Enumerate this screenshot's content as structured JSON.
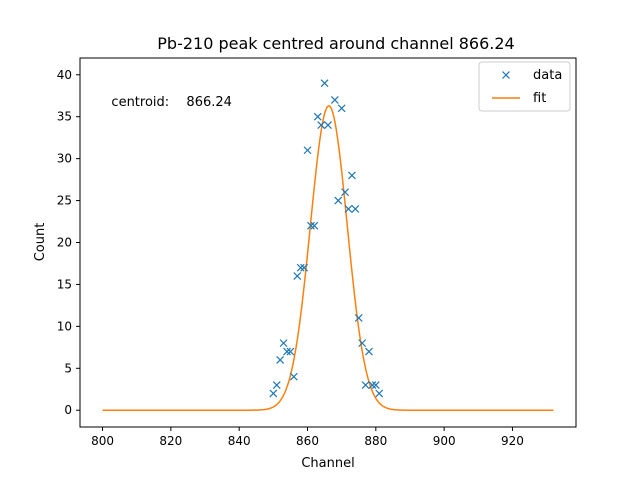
{
  "chart_data": {
    "type": "scatter",
    "title": "Pb-210 peak centred around channel 866.24",
    "xlabel": "Channel",
    "ylabel": "Count",
    "xlim": [
      793.4,
      938.6
    ],
    "ylim": [
      -2,
      42
    ],
    "xticks": [
      800,
      820,
      840,
      860,
      880,
      900,
      920
    ],
    "yticks": [
      0,
      5,
      10,
      15,
      20,
      25,
      30,
      35,
      40
    ],
    "grid": false,
    "legend_position": "top-right",
    "annotation": {
      "label": "centroid:",
      "value": "866.24",
      "anchor_x": 802.6,
      "anchor_y": 36.3
    },
    "series": [
      {
        "name": "data",
        "kind": "scatter",
        "marker": "x",
        "color": "#1f77b4",
        "points": [
          [
            850,
            2
          ],
          [
            851,
            3
          ],
          [
            852,
            6
          ],
          [
            853,
            8
          ],
          [
            854,
            7
          ],
          [
            855,
            7
          ],
          [
            856,
            4
          ],
          [
            857,
            16
          ],
          [
            858,
            17
          ],
          [
            859,
            17
          ],
          [
            860,
            31
          ],
          [
            861,
            22
          ],
          [
            862,
            22
          ],
          [
            863,
            35
          ],
          [
            864,
            34
          ],
          [
            865,
            39
          ],
          [
            866,
            34
          ],
          [
            868,
            37
          ],
          [
            869,
            25
          ],
          [
            870,
            36
          ],
          [
            871,
            26
          ],
          [
            872,
            24
          ],
          [
            873,
            28
          ],
          [
            874,
            24
          ],
          [
            875,
            11
          ],
          [
            876,
            8
          ],
          [
            877,
            3
          ],
          [
            878,
            7
          ],
          [
            879,
            3
          ],
          [
            880,
            3
          ],
          [
            881,
            2
          ]
        ]
      },
      {
        "name": "fit",
        "kind": "line",
        "color": "#ff7f0e",
        "model": {
          "form": "gaussian",
          "amplitude": 36.3,
          "mean": 866.24,
          "sigma": 5.4,
          "x_start": 800,
          "x_end": 932,
          "step": 0.25
        }
      }
    ]
  }
}
